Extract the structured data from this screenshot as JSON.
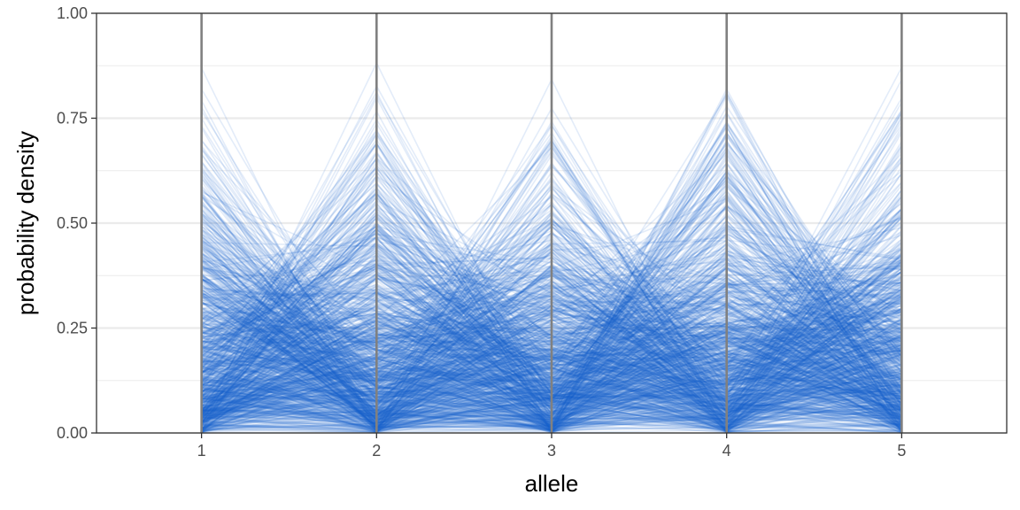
{
  "chart_data": {
    "type": "line",
    "xlabel": "allele",
    "ylabel": "probability density",
    "x": [
      1,
      2,
      3,
      4,
      5
    ],
    "x_ticks": [
      "1",
      "2",
      "3",
      "4",
      "5"
    ],
    "xlim": [
      0.4,
      5.6
    ],
    "ylim": [
      0,
      1
    ],
    "y_ticks": [
      "0.00",
      "0.25",
      "0.50",
      "0.75",
      "1.00"
    ],
    "grid": true,
    "legend": "none",
    "colors": {
      "line": "#1a5fcc",
      "allele_axis": "#808080",
      "grid": "#ebebeb",
      "panel_border": "#333333"
    },
    "series_count": 1000,
    "alpha": 0.12
  }
}
